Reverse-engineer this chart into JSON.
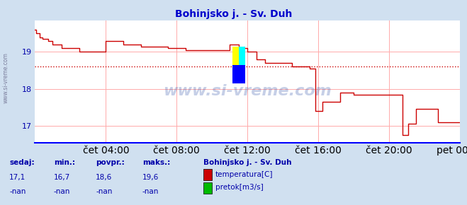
{
  "title": "Bohinjsko j. - Sv. Duh",
  "bg_color": "#d0e0f0",
  "plot_bg_color": "#ffffff",
  "line_color": "#cc0000",
  "grid_color": "#ffaaaa",
  "axis_color": "#0000cc",
  "text_color": "#0000aa",
  "avg_line_color": "#cc0000",
  "avg_line_value": 18.6,
  "ylim": [
    16.55,
    19.85
  ],
  "yticks": [
    17,
    18,
    19
  ],
  "xlabel_times": [
    "čet 04:00",
    "čet 08:00",
    "čet 12:00",
    "čet 16:00",
    "čet 20:00",
    "pet 00:00"
  ],
  "xtick_pos": [
    4,
    8,
    12,
    16,
    20,
    24
  ],
  "stats_labels": [
    "sedaj:",
    "min.:",
    "povpr.:",
    "maks.:"
  ],
  "stats_values": [
    "17,1",
    "16,7",
    "18,6",
    "19,6"
  ],
  "stats_values2": [
    "-nan",
    "-nan",
    "-nan",
    "-nan"
  ],
  "legend_station": "Bohinjsko j. - Sv. Duh",
  "legend_items": [
    {
      "label": "temperatura[C]",
      "color": "#cc0000"
    },
    {
      "label": "pretok[m3/s]",
      "color": "#00bb00"
    }
  ],
  "temp_data": [
    [
      0.0,
      19.6
    ],
    [
      0.083,
      19.5
    ],
    [
      0.25,
      19.4
    ],
    [
      0.417,
      19.35
    ],
    [
      0.75,
      19.3
    ],
    [
      1.0,
      19.2
    ],
    [
      1.5,
      19.1
    ],
    [
      2.0,
      19.1
    ],
    [
      2.5,
      19.0
    ],
    [
      3.0,
      19.0
    ],
    [
      3.5,
      19.0
    ],
    [
      4.0,
      19.3
    ],
    [
      4.5,
      19.3
    ],
    [
      5.0,
      19.2
    ],
    [
      5.5,
      19.2
    ],
    [
      6.0,
      19.15
    ],
    [
      7.0,
      19.15
    ],
    [
      7.5,
      19.1
    ],
    [
      8.0,
      19.1
    ],
    [
      8.5,
      19.05
    ],
    [
      9.0,
      19.05
    ],
    [
      10.0,
      19.05
    ],
    [
      10.5,
      19.05
    ],
    [
      11.0,
      19.2
    ],
    [
      11.5,
      19.1
    ],
    [
      12.0,
      19.0
    ],
    [
      12.5,
      18.8
    ],
    [
      13.0,
      18.7
    ],
    [
      13.5,
      18.7
    ],
    [
      14.0,
      18.7
    ],
    [
      14.5,
      18.6
    ],
    [
      15.0,
      18.6
    ],
    [
      15.5,
      18.55
    ],
    [
      15.75,
      18.55
    ],
    [
      15.833,
      17.4
    ],
    [
      16.0,
      17.4
    ],
    [
      16.25,
      17.65
    ],
    [
      16.5,
      17.65
    ],
    [
      16.75,
      17.65
    ],
    [
      17.0,
      17.65
    ],
    [
      17.25,
      17.9
    ],
    [
      17.5,
      17.9
    ],
    [
      17.75,
      17.9
    ],
    [
      18.0,
      17.85
    ],
    [
      18.25,
      17.85
    ],
    [
      18.5,
      17.85
    ],
    [
      19.0,
      17.85
    ],
    [
      19.5,
      17.85
    ],
    [
      20.0,
      17.85
    ],
    [
      20.5,
      17.85
    ],
    [
      20.75,
      16.75
    ],
    [
      20.833,
      16.75
    ],
    [
      21.0,
      16.75
    ],
    [
      21.083,
      17.05
    ],
    [
      21.5,
      17.45
    ],
    [
      21.75,
      17.45
    ],
    [
      22.0,
      17.45
    ],
    [
      22.5,
      17.45
    ],
    [
      22.75,
      17.1
    ],
    [
      23.0,
      17.1
    ],
    [
      23.5,
      17.1
    ],
    [
      24.0,
      17.1
    ]
  ]
}
